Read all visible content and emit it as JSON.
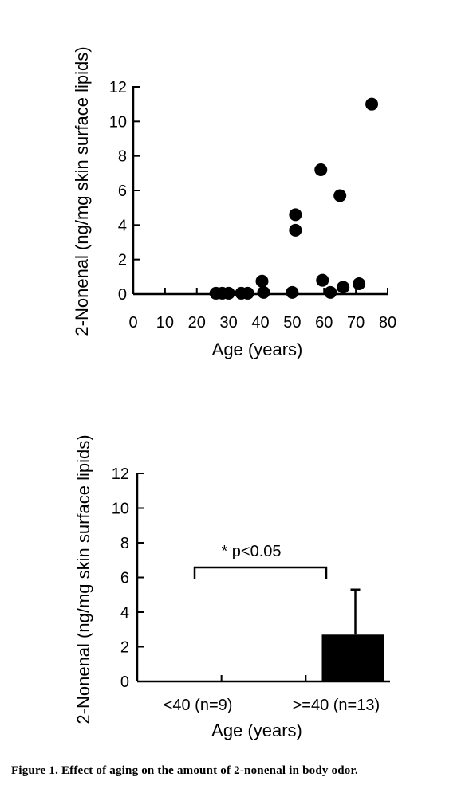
{
  "chart_data": [
    {
      "type": "scatter",
      "xlabel": "Age (years)",
      "ylabel": "2-Nonenal (ng/mg skin surface lipids)",
      "xlim": [
        0,
        80
      ],
      "ylim": [
        0,
        12
      ],
      "x_ticks": [
        "0",
        "10",
        "20",
        "30",
        "40",
        "50",
        "60",
        "70",
        "80"
      ],
      "y_ticks": [
        "0",
        "2",
        "4",
        "6",
        "8",
        "10",
        "12"
      ],
      "points": [
        {
          "x": 26,
          "y": 0.05
        },
        {
          "x": 28,
          "y": 0.05
        },
        {
          "x": 30,
          "y": 0.05
        },
        {
          "x": 34,
          "y": 0.05
        },
        {
          "x": 36,
          "y": 0.05
        },
        {
          "x": 40.5,
          "y": 0.75
        },
        {
          "x": 41,
          "y": 0.1
        },
        {
          "x": 50,
          "y": 0.1
        },
        {
          "x": 51,
          "y": 4.6
        },
        {
          "x": 51,
          "y": 3.7
        },
        {
          "x": 59,
          "y": 7.2
        },
        {
          "x": 59.5,
          "y": 0.8
        },
        {
          "x": 62,
          "y": 0.1
        },
        {
          "x": 65,
          "y": 5.7
        },
        {
          "x": 66,
          "y": 0.4
        },
        {
          "x": 71,
          "y": 0.6
        },
        {
          "x": 75,
          "y": 11.0
        }
      ],
      "marker_color": "#000000",
      "grid": false
    },
    {
      "type": "bar",
      "xlabel": "Age (years)",
      "ylabel": "2-Nonenal (ng/mg skin surface lipids)",
      "ylim": [
        0,
        12
      ],
      "y_ticks": [
        "0",
        "2",
        "4",
        "6",
        "8",
        "10",
        "12"
      ],
      "categories": [
        "<40 (n=9)",
        ">=40 (n=13)"
      ],
      "values": [
        0,
        2.7
      ],
      "error_upper": [
        0,
        2.6
      ],
      "bar_color": "#000000",
      "annotation": "* p<0.05",
      "grid": false
    }
  ],
  "caption": "Figure 1. Effect of aging on the amount of 2-nonenal in body odor."
}
